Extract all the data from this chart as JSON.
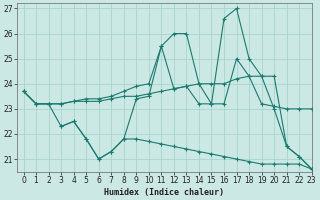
{
  "xlabel": "Humidex (Indice chaleur)",
  "bg_color": "#cce8e4",
  "grid_color": "#a8d5cf",
  "line_color": "#1a7a6e",
  "xlim": [
    -0.5,
    23
  ],
  "ylim": [
    20.5,
    27.2
  ],
  "yticks": [
    21,
    22,
    23,
    24,
    25,
    26,
    27
  ],
  "xticks": [
    0,
    1,
    2,
    3,
    4,
    5,
    6,
    7,
    8,
    9,
    10,
    11,
    12,
    13,
    14,
    15,
    16,
    17,
    18,
    19,
    20,
    21,
    22,
    23
  ],
  "series": [
    {
      "x": [
        0,
        1,
        2,
        3,
        4,
        5,
        6,
        7,
        8,
        9,
        10,
        11,
        12,
        13,
        14,
        15,
        16,
        17,
        18,
        19,
        20,
        21,
        22,
        23
      ],
      "y": [
        23.7,
        23.2,
        23.2,
        23.2,
        23.3,
        23.4,
        23.4,
        23.5,
        23.7,
        23.9,
        24.0,
        25.5,
        26.0,
        26.0,
        24.0,
        23.2,
        26.6,
        27.0,
        25.0,
        24.3,
        24.3,
        21.5,
        21.1,
        20.6
      ]
    },
    {
      "x": [
        0,
        1,
        2,
        3,
        4,
        5,
        6,
        7,
        8,
        9,
        10,
        11,
        12,
        13,
        14,
        15,
        16,
        17,
        18,
        19,
        20,
        21,
        22,
        23
      ],
      "y": [
        23.7,
        23.2,
        23.2,
        23.2,
        23.3,
        23.3,
        23.3,
        23.4,
        23.5,
        23.5,
        23.6,
        23.7,
        23.8,
        23.9,
        24.0,
        24.0,
        24.0,
        24.2,
        24.3,
        23.2,
        23.1,
        23.0,
        23.0,
        23.0
      ]
    },
    {
      "x": [
        0,
        1,
        2,
        3,
        4,
        5,
        6,
        7,
        8,
        9,
        10,
        11,
        12,
        13,
        14,
        15,
        16,
        17,
        18,
        19,
        20,
        21,
        22,
        23
      ],
      "y": [
        23.7,
        23.2,
        23.2,
        22.3,
        22.5,
        21.8,
        21.0,
        21.3,
        21.8,
        21.8,
        21.7,
        21.6,
        21.5,
        21.4,
        21.3,
        21.2,
        21.1,
        21.0,
        20.9,
        20.8,
        20.8,
        20.8,
        20.8,
        20.6
      ]
    },
    {
      "x": [
        3,
        4,
        5,
        6,
        7,
        8,
        9,
        10,
        11,
        12,
        13,
        14,
        15,
        16,
        17,
        18,
        19,
        20,
        21,
        22,
        23
      ],
      "y": [
        22.3,
        22.5,
        21.8,
        21.0,
        21.3,
        21.8,
        23.4,
        23.5,
        25.5,
        23.8,
        23.9,
        23.2,
        23.2,
        23.2,
        25.0,
        24.3,
        24.3,
        23.0,
        21.5,
        21.1,
        20.6
      ]
    }
  ]
}
